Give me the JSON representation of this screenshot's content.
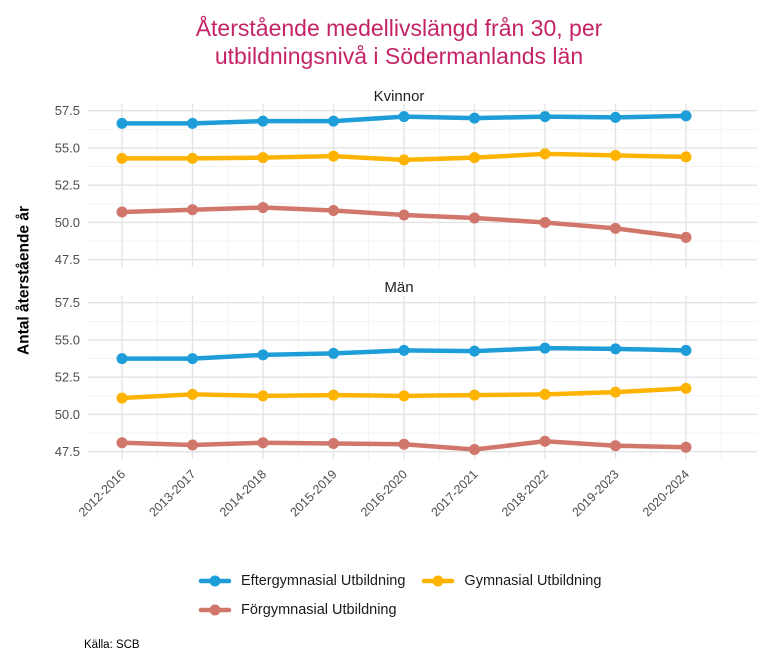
{
  "title": {
    "line1": "Återstående medellivslängd från 30, per",
    "line2": "utbildningsnivå i Södermanlands län"
  },
  "ylabel": "Antal återstående år",
  "source": "Källa: SCB",
  "colors": {
    "title": "#c52367",
    "axis_text": "#4d4d4d",
    "grid_major": "#e3e3e3",
    "grid_minor": "#f1f1f1",
    "eftergymnasial": "#1e9ed9",
    "gymnasial": "#feb301",
    "forgymnasial": "#d0766a"
  },
  "chart_data": {
    "type": "line",
    "title": "Återstående medellivslängd från 30, per utbildningsnivå i Södermanlands län",
    "xlabel": "",
    "ylabel": "Antal återstående år",
    "categories": [
      "2012-2016",
      "2013-2017",
      "2014-2018",
      "2015-2019",
      "2016-2020",
      "2017-2021",
      "2018-2022",
      "2019-2023",
      "2020-2024"
    ],
    "yticks": [
      47.5,
      50.0,
      52.5,
      55.0,
      57.5
    ],
    "yminor": [
      48.75,
      51.25,
      53.75,
      56.25
    ],
    "ylim": [
      47.0,
      58.0
    ],
    "grid": true,
    "legend_position": "bottom",
    "legend": [
      "Eftergymnasial Utbildning",
      "Gymnasial Utbildning",
      "Förgymnasial Utbildning"
    ],
    "series_colors": [
      "#1e9ed9",
      "#feb301",
      "#d0766a"
    ],
    "facets": [
      {
        "label": "Kvinnor",
        "series": [
          {
            "name": "Eftergymnasial Utbildning",
            "values": [
              56.65,
              56.65,
              56.8,
              56.8,
              57.1,
              57.0,
              57.1,
              57.05,
              57.15
            ]
          },
          {
            "name": "Gymnasial Utbildning",
            "values": [
              54.3,
              54.3,
              54.35,
              54.45,
              54.2,
              54.35,
              54.6,
              54.5,
              54.4
            ]
          },
          {
            "name": "Förgymnasial Utbildning",
            "values": [
              50.7,
              50.85,
              51.0,
              50.8,
              50.5,
              50.3,
              50.0,
              49.6,
              49.0
            ]
          }
        ]
      },
      {
        "label": "Män",
        "series": [
          {
            "name": "Eftergymnasial Utbildning",
            "values": [
              53.75,
              53.75,
              54.0,
              54.1,
              54.3,
              54.25,
              54.45,
              54.4,
              54.3
            ]
          },
          {
            "name": "Gymnasial Utbildning",
            "values": [
              51.1,
              51.35,
              51.25,
              51.3,
              51.25,
              51.3,
              51.35,
              51.5,
              51.75
            ]
          },
          {
            "name": "Förgymnasial Utbildning",
            "values": [
              48.1,
              47.95,
              48.1,
              48.05,
              48.0,
              47.65,
              48.2,
              47.9,
              47.8
            ]
          }
        ]
      }
    ]
  }
}
